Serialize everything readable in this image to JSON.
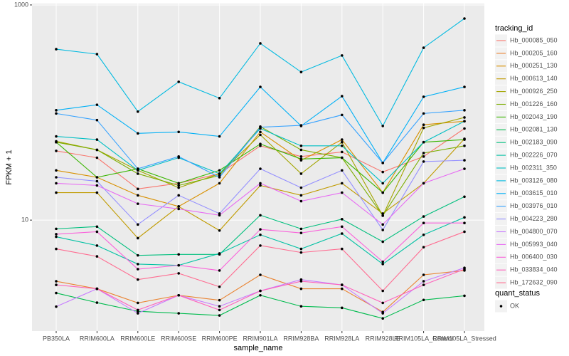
{
  "chart_data": {
    "type": "line",
    "x_label": "sample_name",
    "y_label": "FPKM + 1",
    "legend_title": "tracking_id",
    "categories": [
      "PB350LA",
      "RRIM600LA",
      "RRIM600LE",
      "RRIM600SE",
      "RRIM600PE",
      "RRIM901LA",
      "RRIM928BA",
      "RRIM928LA",
      "RRIM928LE",
      "RRIM105LA_Control",
      "RRIM105LA_Stressed"
    ],
    "log_scale": true,
    "ylim": [
      0.93,
      1030
    ],
    "yticks": [
      10,
      1000
    ],
    "grid": true,
    "point_color": "#000000",
    "shape_legend": {
      "title": "quant_status",
      "labels": [
        "OK"
      ]
    },
    "series": [
      {
        "name": "Hb_000085_050",
        "color": "#F8766D",
        "values": [
          44,
          38,
          19.5,
          22,
          27,
          49,
          39,
          43,
          28,
          39,
          71
        ]
      },
      {
        "name": "Hb_000205_160",
        "color": "#EA8331",
        "values": [
          2.7,
          2.3,
          1.7,
          2.0,
          1.8,
          3.1,
          2.3,
          2.3,
          1.4,
          3.1,
          3.4
        ]
      },
      {
        "name": "Hb_000251_130",
        "color": "#D89000",
        "values": [
          29,
          25,
          17,
          13.4,
          22,
          66,
          36,
          56,
          18,
          77,
          83
        ]
      },
      {
        "name": "Hb_000613_140",
        "color": "#C09B00",
        "values": [
          18,
          18,
          6.8,
          13.4,
          8.0,
          21,
          17,
          22,
          11.5,
          22,
          57
        ]
      },
      {
        "name": "Hb_000926_250",
        "color": "#A3A500",
        "values": [
          54,
          45,
          29,
          20,
          27,
          62,
          27,
          53,
          11,
          72,
          90
        ]
      },
      {
        "name": "Hb_001226_160",
        "color": "#7CAE00",
        "values": [
          53,
          45,
          27,
          21,
          26,
          74,
          45,
          38,
          11,
          42,
          49
        ]
      },
      {
        "name": "Hb_002043_190",
        "color": "#39B600",
        "values": [
          53,
          25,
          30,
          22,
          29,
          51,
          37,
          38,
          18,
          53,
          56
        ]
      },
      {
        "name": "Hb_002081_130",
        "color": "#00BB4E",
        "values": [
          2.1,
          1.71,
          1.42,
          1.36,
          1.3,
          2.0,
          1.58,
          1.53,
          1.22,
          1.81,
          1.98
        ]
      },
      {
        "name": "Hb_002183_090",
        "color": "#00BF7D",
        "values": [
          8.3,
          8.7,
          4.7,
          4.8,
          4.8,
          11.1,
          8.3,
          10.2,
          6.3,
          10.8,
          16.5
        ]
      },
      {
        "name": "Hb_002226_070",
        "color": "#00C1A3",
        "values": [
          7.0,
          5.8,
          3.9,
          3.8,
          4.9,
          7.3,
          5.4,
          7.5,
          3.9,
          7.3,
          10.6
        ]
      },
      {
        "name": "Hb_002311_350",
        "color": "#00BFC4",
        "values": [
          60,
          56,
          29,
          38,
          27,
          71,
          49,
          49,
          22,
          53,
          83
        ]
      },
      {
        "name": "Hb_003126_080",
        "color": "#00BAE0",
        "values": [
          388,
          349,
          102,
          193,
          136,
          439,
          238,
          339,
          75,
          400,
          748
        ]
      },
      {
        "name": "Hb_003615_010",
        "color": "#00B0F6",
        "values": [
          105,
          118,
          64,
          66,
          60,
          173,
          75,
          142,
          34,
          140,
          173
        ]
      },
      {
        "name": "Hb_003976_010",
        "color": "#35A2FF",
        "values": [
          98,
          85,
          30,
          39,
          25,
          73,
          76,
          95,
          34,
          98,
          105
        ]
      },
      {
        "name": "Hb_004223_280",
        "color": "#9590FF",
        "values": [
          25,
          23,
          9.1,
          17,
          11.5,
          30,
          20,
          29,
          8.1,
          35,
          36
        ]
      },
      {
        "name": "Hb_004800_070",
        "color": "#C77CFF",
        "values": [
          1.57,
          2.3,
          1.36,
          2.0,
          1.58,
          2.2,
          2.8,
          2.5,
          1.36,
          2.7,
          3.6
        ]
      },
      {
        "name": "Hb_005993_040",
        "color": "#E76BF3",
        "values": [
          22,
          21,
          14.2,
          12.7,
          11.1,
          22,
          15,
          18,
          9.1,
          22,
          30
        ]
      },
      {
        "name": "Hb_006400_030",
        "color": "#FA62DB",
        "values": [
          7.4,
          7.8,
          3.5,
          3.8,
          3.4,
          8.2,
          7.6,
          8.7,
          4.1,
          9.4,
          9.4
        ]
      },
      {
        "name": "Hb_033834_040",
        "color": "#FF62BC",
        "values": [
          2.5,
          2.3,
          1.46,
          2.0,
          1.46,
          2.2,
          2.7,
          2.5,
          1.7,
          2.5,
          3.5
        ]
      },
      {
        "name": "Hb_172632_090",
        "color": "#FF6C91",
        "values": [
          5.4,
          4.6,
          2.8,
          3.2,
          2.4,
          5.8,
          5.0,
          5.4,
          2.2,
          5.6,
          7.8
        ]
      }
    ]
  }
}
